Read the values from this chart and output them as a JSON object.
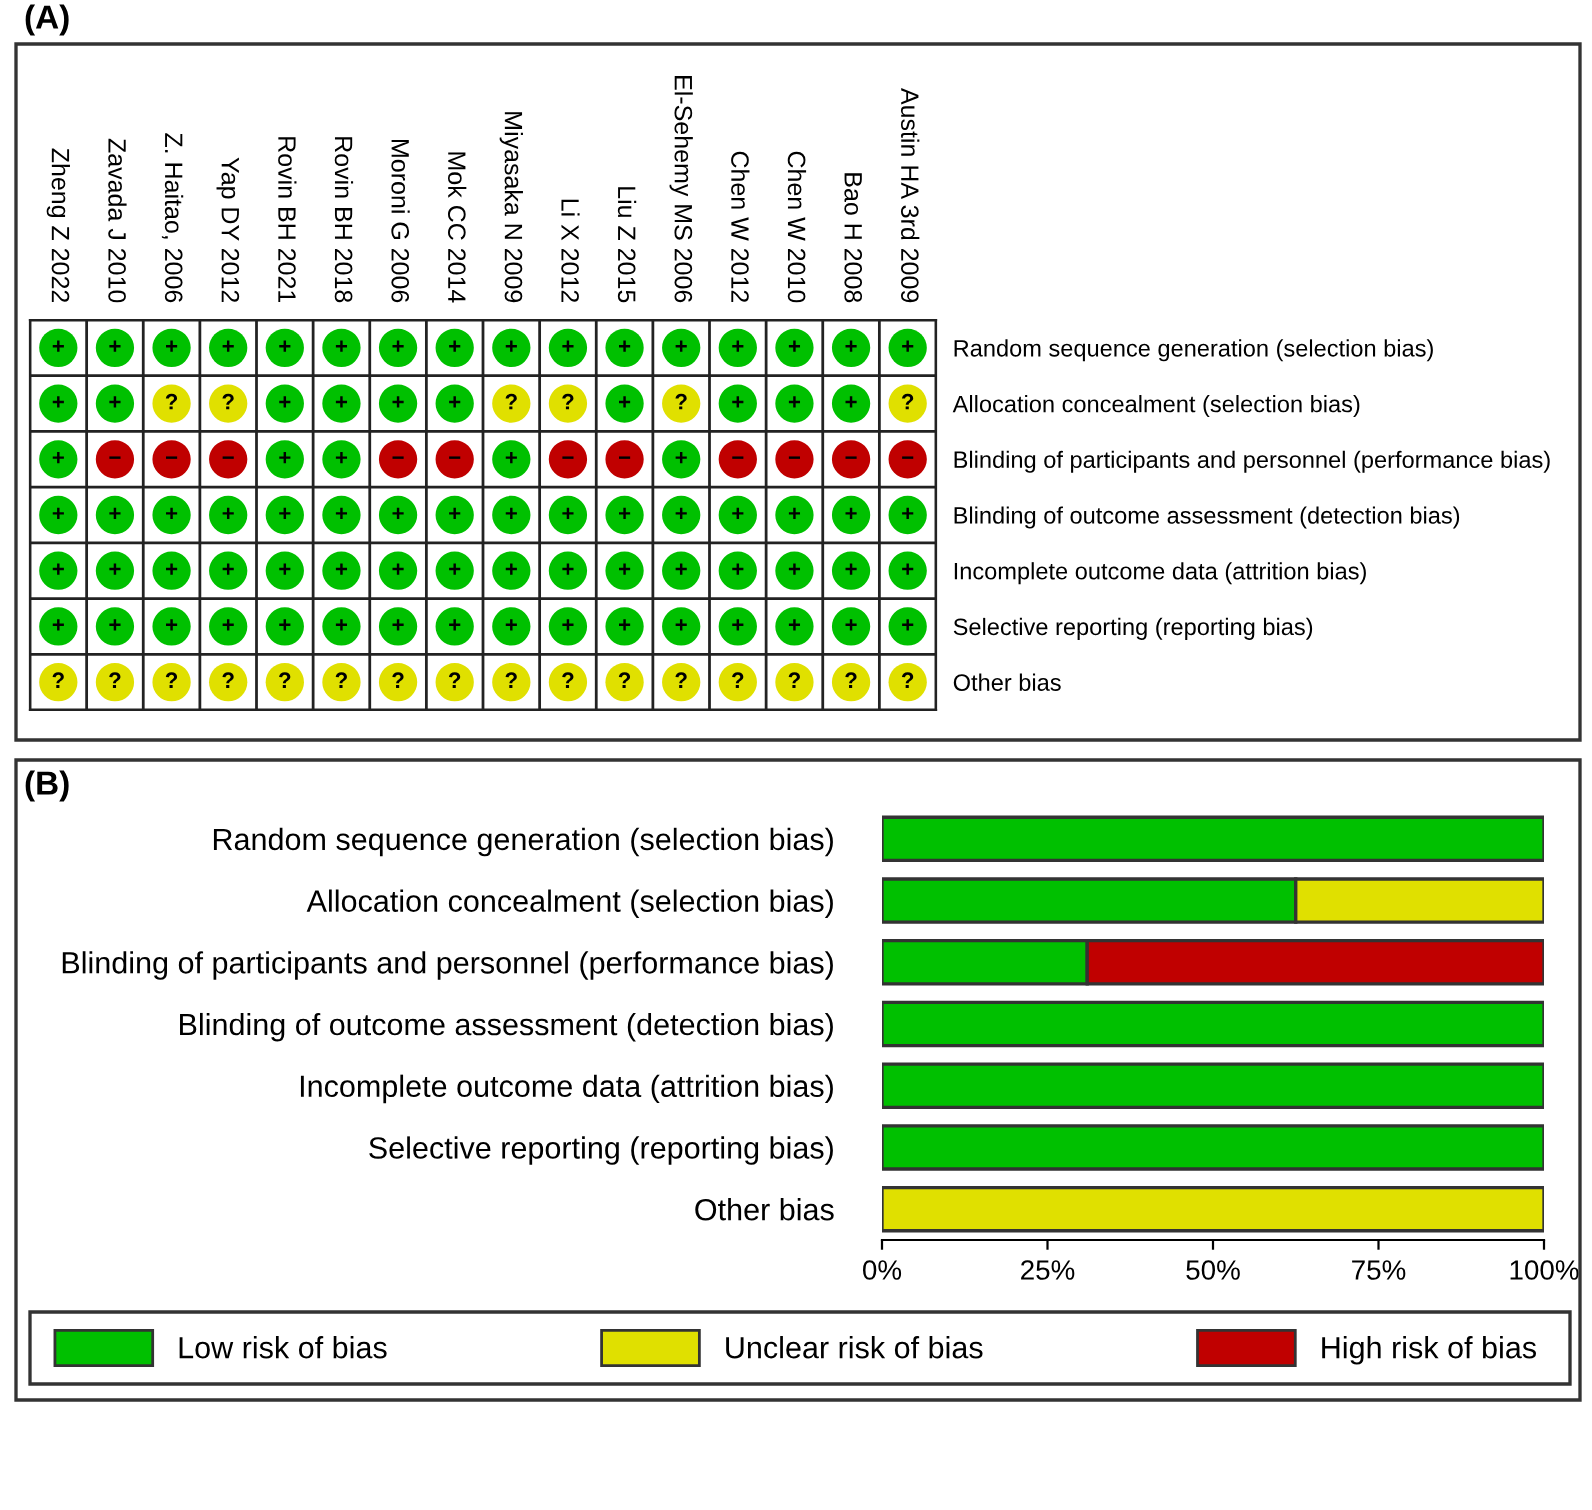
{
  "chart_data": [
    {
      "type": "heatmap",
      "title": "(A)",
      "categories": [
        "Zheng Z 2022",
        "Zavada J 2010",
        "Z. Haitao, 2006",
        "Yap DY 2012",
        "Rovin BH 2021",
        "Rovin BH 2018",
        "Moroni G 2006",
        "Mok CC 2014",
        "Miyasaka N 2009",
        "Li X 2012",
        "Liu Z 2015",
        "El-Sehemy MS 2006",
        "Chen W 2012",
        "Chen W 2010",
        "Bao H 2008",
        "Austin HA 3rd 2009"
      ],
      "y_categories": [
        "Random sequence generation (selection bias)",
        "Allocation concealment (selection bias)",
        "Blinding of participants and personnel (performance bias)",
        "Blinding of outcome assessment (detection bias)",
        "Incomplete outcome data (attrition bias)",
        "Selective reporting (reporting bias)",
        "Other bias"
      ],
      "cells": [
        [
          "+",
          "+",
          "+",
          "+",
          "+",
          "+",
          "+",
          "+",
          "+",
          "+",
          "+",
          "+",
          "+",
          "+",
          "+",
          "+"
        ],
        [
          "+",
          "+",
          "?",
          "?",
          "+",
          "+",
          "+",
          "+",
          "?",
          "?",
          "+",
          "?",
          "+",
          "+",
          "+",
          "?"
        ],
        [
          "+",
          "−",
          "−",
          "−",
          "+",
          "+",
          "−",
          "−",
          "+",
          "−",
          "−",
          "+",
          "−",
          "−",
          "−",
          "−"
        ],
        [
          "+",
          "+",
          "+",
          "+",
          "+",
          "+",
          "+",
          "+",
          "+",
          "+",
          "+",
          "+",
          "+",
          "+",
          "+",
          "+"
        ],
        [
          "+",
          "+",
          "+",
          "+",
          "+",
          "+",
          "+",
          "+",
          "+",
          "+",
          "+",
          "+",
          "+",
          "+",
          "+",
          "+"
        ],
        [
          "+",
          "+",
          "+",
          "+",
          "+",
          "+",
          "+",
          "+",
          "+",
          "+",
          "+",
          "+",
          "+",
          "+",
          "+",
          "+"
        ],
        [
          "?",
          "?",
          "?",
          "?",
          "?",
          "?",
          "?",
          "?",
          "?",
          "?",
          "?",
          "?",
          "?",
          "?",
          "?",
          "?"
        ]
      ],
      "colors": [
        [
          "#00c000",
          "#00c000",
          "#00c000",
          "#00c000",
          "#00c000",
          "#00c000",
          "#00c000",
          "#00c000",
          "#00c000",
          "#00c000",
          "#00c000",
          "#00c000",
          "#00c000",
          "#00c000",
          "#00c000",
          "#00c000"
        ],
        [
          "#00c000",
          "#00c000",
          "#e0e000",
          "#e0e000",
          "#00c000",
          "#00c000",
          "#00c000",
          "#00c000",
          "#e0e000",
          "#e0e000",
          "#00c000",
          "#e0e000",
          "#00c000",
          "#00c000",
          "#00c000",
          "#e0e000"
        ],
        [
          "#00c000",
          "#c00000",
          "#c00000",
          "#c00000",
          "#00c000",
          "#00c000",
          "#c00000",
          "#c00000",
          "#00c000",
          "#c00000",
          "#c00000",
          "#00c000",
          "#c00000",
          "#c00000",
          "#c00000",
          "#c00000"
        ],
        [
          "#00c000",
          "#00c000",
          "#00c000",
          "#00c000",
          "#00c000",
          "#00c000",
          "#00c000",
          "#00c000",
          "#00c000",
          "#00c000",
          "#00c000",
          "#00c000",
          "#00c000",
          "#00c000",
          "#00c000",
          "#00c000"
        ],
        [
          "#00c000",
          "#00c000",
          "#00c000",
          "#00c000",
          "#00c000",
          "#00c000",
          "#00c000",
          "#00c000",
          "#00c000",
          "#00c000",
          "#00c000",
          "#00c000",
          "#00c000",
          "#00c000",
          "#00c000",
          "#00c000"
        ],
        [
          "#00c000",
          "#00c000",
          "#00c000",
          "#00c000",
          "#00c000",
          "#00c000",
          "#00c000",
          "#00c000",
          "#00c000",
          "#00c000",
          "#00c000",
          "#00c000",
          "#00c000",
          "#00c000",
          "#00c000",
          "#00c000"
        ],
        [
          "#e0e000",
          "#e0e000",
          "#e0e000",
          "#e0e000",
          "#e0e000",
          "#e0e000",
          "#e0e000",
          "#e0e000",
          "#e0e000",
          "#e0e000",
          "#e0e000",
          "#e0e000",
          "#e0e000",
          "#e0e000",
          "#e0e000",
          "#e0e000"
        ]
      ],
      "grid": true
    },
    {
      "type": "bar",
      "title": "(B)",
      "orientation": "horizontal",
      "stacked": true,
      "categories": [
        "Random sequence generation (selection bias)",
        "Allocation concealment (selection bias)",
        "Blinding of participants and personnel (performance bias)",
        "Blinding of outcome assessment (detection bias)",
        "Incomplete outcome data (attrition bias)",
        "Selective reporting (reporting bias)",
        "Other bias"
      ],
      "series": [
        {
          "name": "Low risk of bias",
          "color": "#00c000",
          "values": [
            100,
            62.5,
            31,
            100,
            100,
            100,
            0
          ]
        },
        {
          "name": "Unclear risk of bias",
          "color": "#e0e000",
          "values": [
            0,
            37.5,
            0,
            0,
            0,
            0,
            100
          ]
        },
        {
          "name": "High risk of bias",
          "color": "#c00000",
          "values": [
            0,
            0,
            69,
            0,
            0,
            0,
            0
          ]
        }
      ],
      "xlim": [
        0,
        100
      ],
      "xticks": [
        {
          "value": 0,
          "label": "0%"
        },
        {
          "value": 25,
          "label": "25%"
        },
        {
          "value": 50,
          "label": "50%"
        },
        {
          "value": 75,
          "label": "75%"
        },
        {
          "value": 100,
          "label": "100%"
        }
      ],
      "legend": "bottom"
    }
  ]
}
